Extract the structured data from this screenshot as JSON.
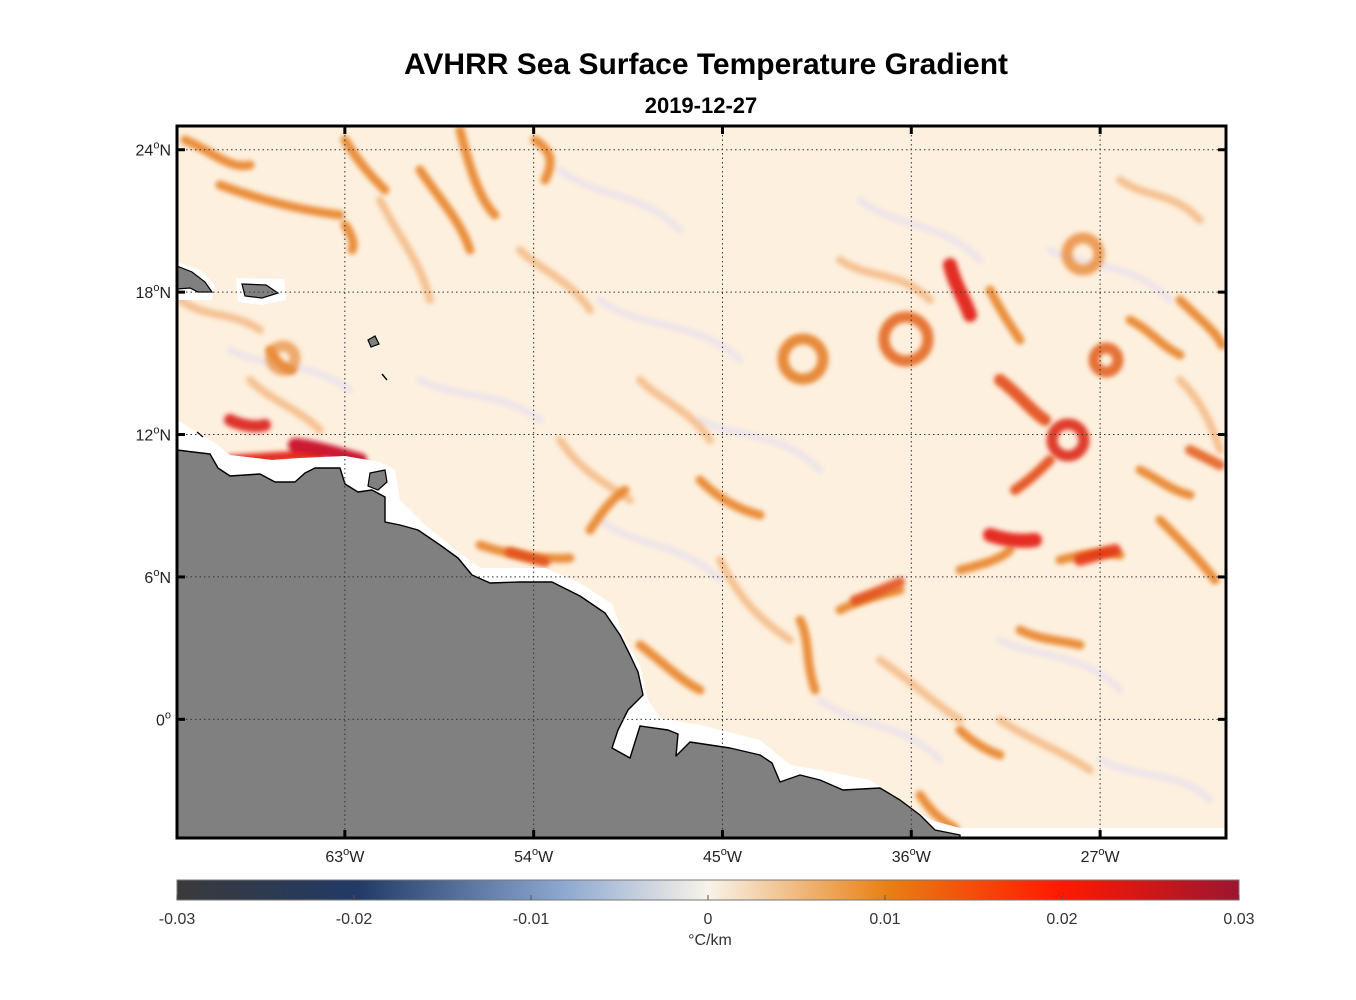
{
  "title": "AVHRR Sea Surface Temperature Gradient",
  "subtitle": "2019-12-27",
  "colors": {
    "land": "#808080",
    "coast_buffer": "#ffffff",
    "ocean_base": "#fdf0de",
    "gradient_low": "#e8843a",
    "gradient_mid": "#e2461a",
    "gradient_high": "#c0112a"
  },
  "map": {
    "lon_range": [
      -71,
      -21
    ],
    "lat_range": [
      -5,
      25
    ],
    "lon_ticks": [
      {
        "value": -63,
        "deg": "63",
        "hemi": "W"
      },
      {
        "value": -54,
        "deg": "54",
        "hemi": "W"
      },
      {
        "value": -45,
        "deg": "45",
        "hemi": "W"
      },
      {
        "value": -36,
        "deg": "36",
        "hemi": "W"
      },
      {
        "value": -27,
        "deg": "27",
        "hemi": "W"
      }
    ],
    "lat_ticks": [
      {
        "value": 24,
        "deg": "24",
        "hemi": "N"
      },
      {
        "value": 18,
        "deg": "18",
        "hemi": "N"
      },
      {
        "value": 12,
        "deg": "12",
        "hemi": "N"
      },
      {
        "value": 6,
        "deg": "6",
        "hemi": "N"
      },
      {
        "value": 0,
        "deg": "0",
        "hemi": ""
      }
    ],
    "grid": "dotted"
  },
  "colorbar": {
    "range": [
      -0.03,
      0.03
    ],
    "ticks": [
      "-0.03",
      "-0.02",
      "-0.01",
      "0",
      "0.01",
      "0.02",
      "0.03"
    ],
    "units": "°C/km",
    "stops": [
      "#3a3a3a",
      "#213a66",
      "#8aa6cf",
      "#f8f3ea",
      "#e97f12",
      "#ff1a00",
      "#9d1530"
    ]
  }
}
